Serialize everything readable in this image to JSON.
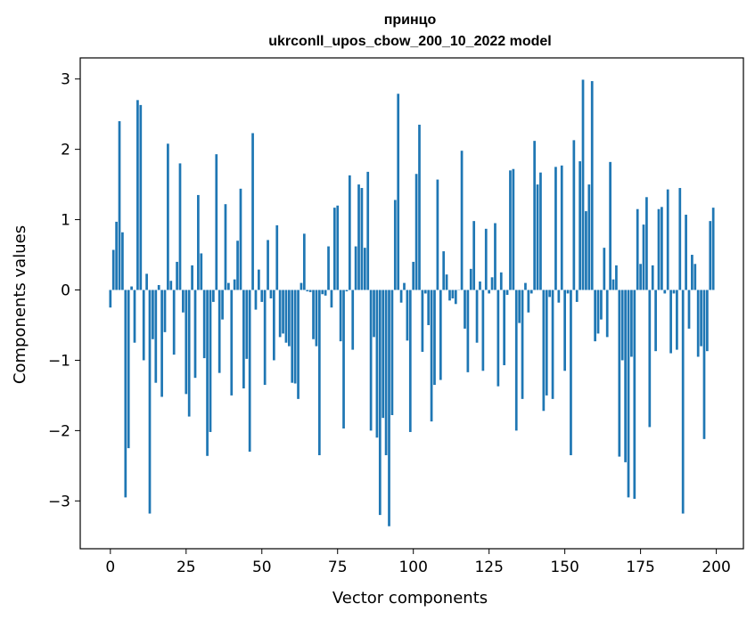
{
  "chart_data": {
    "type": "bar",
    "title_line1": "принцо",
    "title_line2": "ukrconll_upos_cbow_200_10_2022 model",
    "xlabel": "Vector components",
    "ylabel": "Components values",
    "xlim": [
      -9.95,
      208.95
    ],
    "ylim": [
      -3.68,
      3.3
    ],
    "xticks": [
      0,
      25,
      50,
      75,
      100,
      125,
      150,
      175,
      200
    ],
    "xtick_labels": [
      "0",
      "25",
      "50",
      "75",
      "100",
      "125",
      "150",
      "175",
      "200"
    ],
    "yticks": [
      3,
      2,
      1,
      0,
      -1,
      -2,
      -3
    ],
    "ytick_labels": [
      "3",
      "2",
      "1",
      "0",
      "−1",
      "−2",
      "−3"
    ],
    "bar_color": "#1f77b4",
    "bar_width": 0.8,
    "x": [
      0,
      1,
      2,
      3,
      4,
      5,
      6,
      7,
      8,
      9,
      10,
      11,
      12,
      13,
      14,
      15,
      16,
      17,
      18,
      19,
      20,
      21,
      22,
      23,
      24,
      25,
      26,
      27,
      28,
      29,
      30,
      31,
      32,
      33,
      34,
      35,
      36,
      37,
      38,
      39,
      40,
      41,
      42,
      43,
      44,
      45,
      46,
      47,
      48,
      49,
      50,
      51,
      52,
      53,
      54,
      55,
      56,
      57,
      58,
      59,
      60,
      61,
      62,
      63,
      64,
      65,
      66,
      67,
      68,
      69,
      70,
      71,
      72,
      73,
      74,
      75,
      76,
      77,
      78,
      79,
      80,
      81,
      82,
      83,
      84,
      85,
      86,
      87,
      88,
      89,
      90,
      91,
      92,
      93,
      94,
      95,
      96,
      97,
      98,
      99,
      100,
      101,
      102,
      103,
      104,
      105,
      106,
      107,
      108,
      109,
      110,
      111,
      112,
      113,
      114,
      115,
      116,
      117,
      118,
      119,
      120,
      121,
      122,
      123,
      124,
      125,
      126,
      127,
      128,
      129,
      130,
      131,
      132,
      133,
      134,
      135,
      136,
      137,
      138,
      139,
      140,
      141,
      142,
      143,
      144,
      145,
      146,
      147,
      148,
      149,
      150,
      151,
      152,
      153,
      154,
      155,
      156,
      157,
      158,
      159,
      160,
      161,
      162,
      163,
      164,
      165,
      166,
      167,
      168,
      169,
      170,
      171,
      172,
      173,
      174,
      175,
      176,
      177,
      178,
      179,
      180,
      181,
      182,
      183,
      184,
      185,
      186,
      187,
      188,
      189,
      190,
      191,
      192,
      193,
      194,
      195,
      196,
      197,
      198,
      199
    ],
    "values": [
      -0.25,
      0.57,
      0.97,
      2.4,
      0.82,
      -2.95,
      -2.25,
      0.05,
      -0.75,
      2.7,
      2.63,
      -1.0,
      0.23,
      -3.18,
      -0.7,
      -1.32,
      0.07,
      -1.52,
      -0.6,
      2.08,
      0.13,
      -0.92,
      0.4,
      1.8,
      -0.32,
      -1.48,
      -1.8,
      0.35,
      -1.25,
      1.35,
      0.52,
      -0.97,
      -2.36,
      -2.02,
      -0.17,
      1.93,
      -1.18,
      -0.42,
      1.22,
      0.1,
      -1.5,
      0.15,
      0.7,
      1.44,
      -1.4,
      -0.98,
      -2.3,
      2.23,
      -0.28,
      0.29,
      -0.17,
      -1.35,
      0.71,
      -0.12,
      -1.0,
      0.92,
      -0.67,
      -0.62,
      -0.75,
      -0.8,
      -1.32,
      -1.33,
      -1.55,
      0.1,
      0.8,
      -0.02,
      -0.03,
      -0.7,
      -0.8,
      -2.35,
      -0.06,
      -0.08,
      0.62,
      -0.25,
      1.17,
      1.2,
      -0.73,
      -1.97,
      -0.02,
      1.63,
      -0.85,
      0.62,
      1.5,
      1.45,
      0.6,
      1.68,
      -2.0,
      -0.67,
      -2.1,
      -3.2,
      -1.82,
      -2.35,
      -3.36,
      -1.78,
      1.28,
      2.79,
      -0.18,
      0.1,
      -0.72,
      -2.02,
      0.4,
      1.65,
      2.35,
      -0.88,
      -0.05,
      -0.5,
      -1.87,
      -1.35,
      1.57,
      -1.28,
      0.55,
      0.22,
      -0.15,
      -0.12,
      -0.2,
      0.0,
      1.98,
      -0.55,
      -1.17,
      0.3,
      0.98,
      -0.75,
      0.12,
      -1.15,
      0.87,
      -0.05,
      0.18,
      0.95,
      -1.37,
      0.25,
      -1.07,
      -0.07,
      1.7,
      1.72,
      -2.0,
      -0.47,
      -1.55,
      0.1,
      -0.32,
      -0.05,
      2.12,
      1.5,
      1.67,
      -1.72,
      -1.5,
      -0.1,
      -1.55,
      1.75,
      -0.18,
      1.77,
      -1.15,
      -0.05,
      -2.35,
      2.13,
      -0.17,
      1.83,
      2.99,
      1.12,
      1.5,
      2.97,
      -0.73,
      -0.62,
      -0.42,
      0.6,
      -0.67,
      1.82,
      0.15,
      0.35,
      -2.37,
      -1.0,
      -2.45,
      -2.95,
      -0.95,
      -2.97,
      1.15,
      0.37,
      0.93,
      1.32,
      -1.95,
      0.35,
      -0.87,
      1.15,
      1.18,
      -0.05,
      1.43,
      -0.9,
      -0.05,
      -0.85,
      1.45,
      -3.18,
      1.07,
      -0.55,
      0.5,
      0.37,
      -0.95,
      -0.8,
      -2.12,
      -0.87,
      0.98,
      1.17
    ]
  }
}
